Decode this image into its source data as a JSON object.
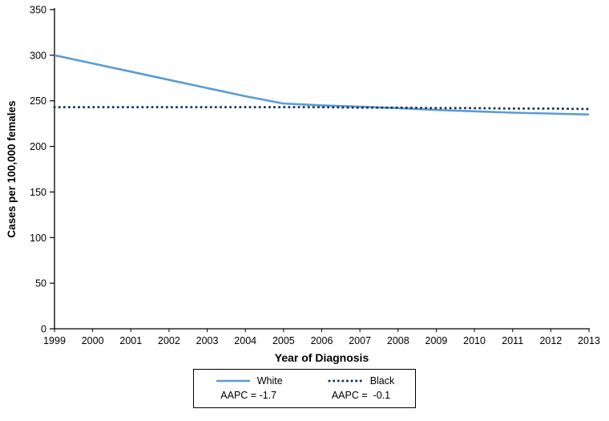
{
  "chart_data": {
    "type": "line",
    "title": "",
    "xlabel": "Year of Diagnosis",
    "ylabel": "Cases per 100,000 females",
    "x": [
      1999,
      2000,
      2001,
      2002,
      2003,
      2004,
      2005,
      2006,
      2007,
      2008,
      2009,
      2010,
      2011,
      2012,
      2013
    ],
    "ylim": [
      0,
      350
    ],
    "yticks": [
      0,
      50,
      100,
      150,
      200,
      250,
      300,
      350
    ],
    "grid": false,
    "legend_position": "bottom",
    "series": [
      {
        "name": "White",
        "aapc": "AAPC = -1.7",
        "color": "#5B9BD5",
        "line_style": "solid",
        "values": [
          300,
          291,
          282,
          273,
          264,
          255,
          247,
          245,
          243.5,
          242,
          240,
          238.5,
          237,
          236,
          235
        ]
      },
      {
        "name": "Black",
        "aapc": "AAPC =  -0.1",
        "color": "#17375E",
        "line_style": "dotted",
        "values": [
          243,
          243,
          243,
          243,
          243,
          243,
          243,
          243,
          242.5,
          242.5,
          242,
          242,
          241.5,
          241.5,
          241
        ]
      }
    ]
  }
}
